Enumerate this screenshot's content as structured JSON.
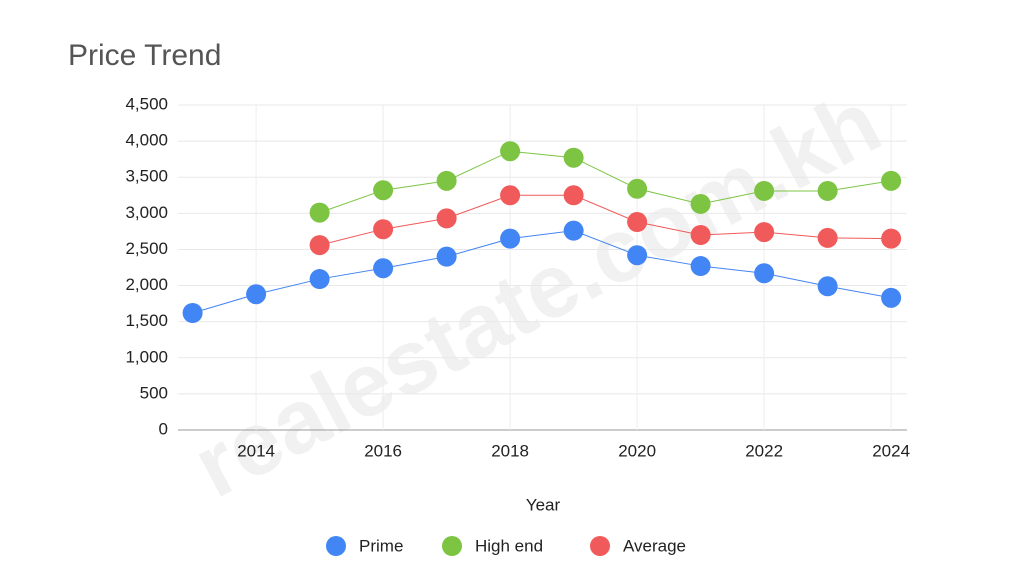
{
  "chart_data": {
    "type": "line",
    "title": "Price Trend",
    "x_label": "Year",
    "watermark": "realestate.com.kh",
    "x": [
      2013,
      2014,
      2015,
      2016,
      2017,
      2018,
      2019,
      2020,
      2021,
      2022,
      2023,
      2024
    ],
    "series": [
      {
        "name": "Prime",
        "color": "#4285f4",
        "values": [
          1620,
          1880,
          2090,
          2240,
          2400,
          2650,
          2760,
          2420,
          2270,
          2170,
          1990,
          1830
        ]
      },
      {
        "name": "High end",
        "color": "#7dc443",
        "values": [
          null,
          null,
          3010,
          3320,
          3450,
          3860,
          3770,
          3340,
          3130,
          3310,
          3310,
          3450
        ]
      },
      {
        "name": "Average",
        "color": "#f05a5a",
        "values": [
          null,
          null,
          2560,
          2780,
          2930,
          3250,
          3250,
          2880,
          2700,
          2740,
          2660,
          2650
        ]
      }
    ],
    "xlim": [
      2012.77,
      2024.25
    ],
    "xticks": [
      2014,
      2016,
      2018,
      2020,
      2022,
      2024
    ],
    "ylim": [
      0,
      4500
    ],
    "yticks": [
      0,
      500,
      {
        "value": 1000,
        "label": "1,000"
      },
      {
        "value": 1500,
        "label": "1,500"
      },
      {
        "value": 2000,
        "label": "2,000"
      },
      {
        "value": 2500,
        "label": "2,500"
      },
      {
        "value": 3000,
        "label": "3,000"
      },
      {
        "value": 3500,
        "label": "3,500"
      },
      {
        "value": 4000,
        "label": "4,000"
      },
      {
        "value": 4500,
        "label": "4,500"
      }
    ],
    "grid": true,
    "legend": "bottom"
  }
}
